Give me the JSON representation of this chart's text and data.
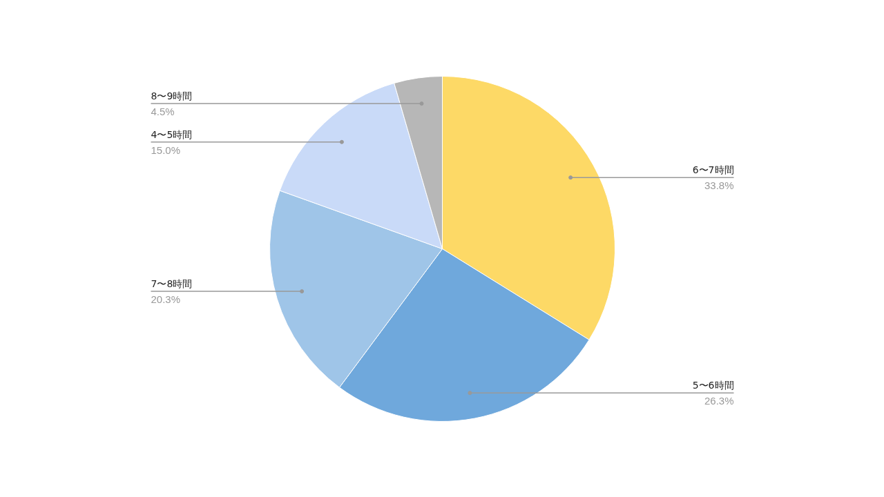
{
  "chart_data": {
    "type": "pie",
    "categories": [
      "6〜7時間",
      "5〜6時間",
      "7〜8時間",
      "4〜5時間",
      "8〜9時間"
    ],
    "values": [
      33.8,
      26.3,
      20.3,
      15.0,
      4.5
    ],
    "colors": [
      "#fdd966",
      "#6fa8dc",
      "#9fc5e8",
      "#c9daf8",
      "#b7b7b7"
    ],
    "value_labels": [
      "33.8%",
      "26.3%",
      "20.3%",
      "15.0%",
      "4.5%"
    ]
  }
}
